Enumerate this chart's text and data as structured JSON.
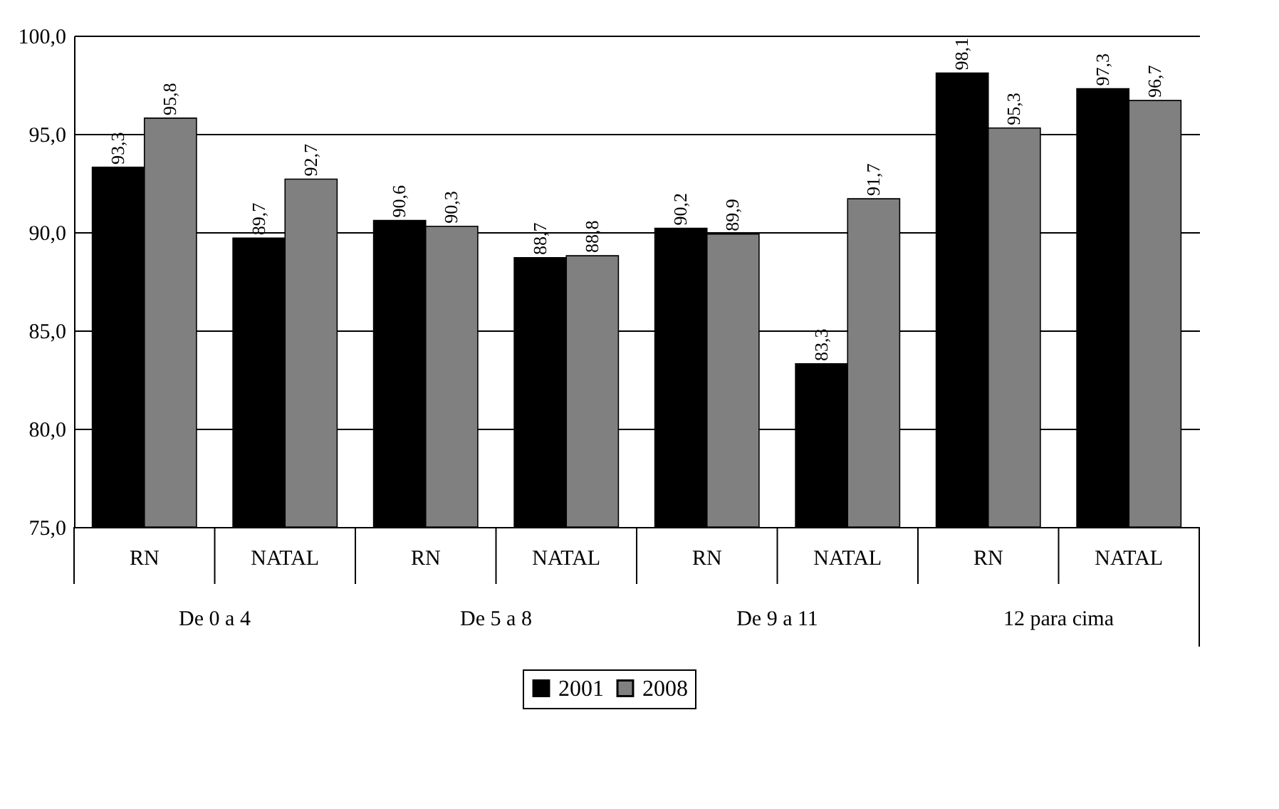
{
  "chart_data": {
    "type": "bar",
    "categories": [
      "RN",
      "NATAL",
      "RN",
      "NATAL",
      "RN",
      "NATAL",
      "RN",
      "NATAL"
    ],
    "series": [
      {
        "name": "2001",
        "color": "#000000",
        "values": [
          93.3,
          89.7,
          90.6,
          88.7,
          90.2,
          83.3,
          98.1,
          97.3
        ],
        "value_labels": [
          "93,3",
          "89,7",
          "90,6",
          "88,7",
          "90,2",
          "83,3",
          "98,1",
          "97,3"
        ]
      },
      {
        "name": "2008",
        "color": "#808080",
        "values": [
          95.8,
          92.7,
          90.3,
          88.8,
          89.9,
          91.7,
          95.3,
          96.7
        ],
        "value_labels": [
          "95,8",
          "92,7",
          "90,3",
          "88,8",
          "89,9",
          "91,7",
          "95,3",
          "96,7"
        ]
      }
    ],
    "annotations": [
      "De 0 a 4",
      "De 5 a 8",
      "De 9 a 11",
      "12 para cima"
    ],
    "ylim": [
      75,
      100
    ],
    "yticks": [
      {
        "value": 75,
        "label": "75,0"
      },
      {
        "value": 80,
        "label": "80,0"
      },
      {
        "value": 85,
        "label": "85,0"
      },
      {
        "value": 90,
        "label": "90,0"
      },
      {
        "value": 95,
        "label": "95,0"
      },
      {
        "value": 100,
        "label": "100,0"
      }
    ],
    "grid": "y",
    "legend": "bottom"
  }
}
